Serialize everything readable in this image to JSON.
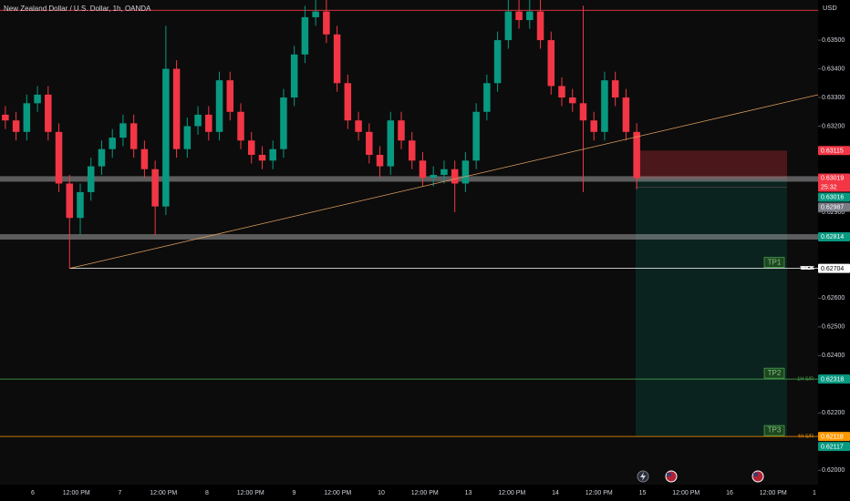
{
  "chart_data": {
    "type": "candlestick",
    "title": "New Zealand Dollar / U.S. Dollar, 1h, OANDA",
    "currency": "USD",
    "up_color": "#089981",
    "down_color": "#f23645",
    "open": [
      0.6324,
      0.6322,
      0.6318,
      0.6328,
      0.6331,
      0.6318,
      0.63,
      0.6288,
      0.6297,
      0.6306,
      0.6312,
      0.6316,
      0.6321,
      0.6312,
      0.6305,
      0.6292,
      0.634,
      0.6312,
      0.632,
      0.6324,
      0.6318,
      0.6336,
      0.6325,
      0.6315,
      0.631,
      0.6308,
      0.6312,
      0.633,
      0.6345,
      0.6358,
      0.636,
      0.6352,
      0.6335,
      0.6322,
      0.6318,
      0.631,
      0.6306,
      0.6322,
      0.6315,
      0.6308,
      0.6302,
      0.6303,
      0.6305,
      0.63,
      0.6308,
      0.6325,
      0.6335,
      0.635,
      0.636,
      0.6357,
      0.636,
      0.635,
      0.6334,
      0.633,
      0.6328,
      0.6322,
      0.6318,
      0.6336,
      0.633,
      0.6318
    ],
    "high": [
      0.6327,
      0.6325,
      0.6331,
      0.6334,
      0.6334,
      0.6321,
      0.6303,
      0.63,
      0.6309,
      0.6315,
      0.6319,
      0.6324,
      0.6324,
      0.6315,
      0.6308,
      0.6355,
      0.6343,
      0.6323,
      0.6327,
      0.6327,
      0.6339,
      0.6339,
      0.6328,
      0.6318,
      0.6313,
      0.6315,
      0.6333,
      0.6348,
      0.6362,
      0.6364,
      0.6364,
      0.6355,
      0.6338,
      0.6325,
      0.6321,
      0.6313,
      0.6325,
      0.6325,
      0.6318,
      0.6311,
      0.6306,
      0.6308,
      0.6308,
      0.6311,
      0.6328,
      0.6338,
      0.6353,
      0.6364,
      0.6364,
      0.6364,
      0.6364,
      0.6353,
      0.6337,
      0.6333,
      0.6362,
      0.6325,
      0.6339,
      0.6339,
      0.6333,
      0.6321
    ],
    "low": [
      0.6319,
      0.6315,
      0.6315,
      0.6325,
      0.6315,
      0.6297,
      0.62704,
      0.6282,
      0.6294,
      0.6303,
      0.6309,
      0.6313,
      0.6309,
      0.6302,
      0.6282,
      0.6289,
      0.6309,
      0.6309,
      0.6317,
      0.6315,
      0.6315,
      0.6322,
      0.6312,
      0.6307,
      0.6305,
      0.6305,
      0.6309,
      0.6327,
      0.6342,
      0.6355,
      0.6349,
      0.6332,
      0.6319,
      0.6315,
      0.6307,
      0.6302,
      0.6303,
      0.6312,
      0.6305,
      0.6299,
      0.6299,
      0.63,
      0.629,
      0.6297,
      0.6305,
      0.6322,
      0.6332,
      0.6347,
      0.6354,
      0.6354,
      0.6347,
      0.6331,
      0.6327,
      0.6325,
      0.6297,
      0.6315,
      0.6315,
      0.6327,
      0.6315,
      0.6298
    ],
    "close": [
      0.6322,
      0.6318,
      0.6328,
      0.6331,
      0.6318,
      0.63,
      0.6288,
      0.6297,
      0.6306,
      0.6312,
      0.6316,
      0.6321,
      0.6312,
      0.6305,
      0.6292,
      0.634,
      0.6312,
      0.632,
      0.6324,
      0.6318,
      0.6336,
      0.6325,
      0.6315,
      0.631,
      0.6308,
      0.6312,
      0.633,
      0.6345,
      0.6358,
      0.636,
      0.6352,
      0.6335,
      0.6322,
      0.6318,
      0.631,
      0.6306,
      0.6322,
      0.6315,
      0.6308,
      0.6302,
      0.6303,
      0.6305,
      0.63,
      0.6308,
      0.6325,
      0.6335,
      0.635,
      0.636,
      0.6357,
      0.636,
      0.635,
      0.6334,
      0.633,
      0.6328,
      0.6322,
      0.6318,
      0.6336,
      0.633,
      0.6318,
      0.63019
    ],
    "ylim": [
      0.6195,
      0.6364
    ],
    "yticks": [
      {
        "value": 0.635,
        "label": "0.63500"
      },
      {
        "value": 0.634,
        "label": "0.63400"
      },
      {
        "value": 0.633,
        "label": "0.63300"
      },
      {
        "value": 0.632,
        "label": "0.63200"
      },
      {
        "value": 0.629,
        "label": "0.62900"
      },
      {
        "value": 0.626,
        "label": "0.62600"
      },
      {
        "value": 0.625,
        "label": "0.62500"
      },
      {
        "value": 0.624,
        "label": "0.62400"
      },
      {
        "value": 0.622,
        "label": "0.62200"
      },
      {
        "value": 0.62,
        "label": "0.62000"
      }
    ],
    "grid": false,
    "time_labels": [
      "6",
      "12:00 PM",
      "7",
      "12:00 PM",
      "8",
      "12:00 PM",
      "9",
      "12:00 PM",
      "10",
      "12:00 PM",
      "13",
      "12:00 PM",
      "14",
      "12:00 PM",
      "15",
      "12:00 PM",
      "16",
      "12:00 PM",
      "1"
    ],
    "levels": [
      {
        "value": 0.63604,
        "color": "#f23645",
        "style": "line"
      },
      {
        "value": 0.63016,
        "label": "1H S/R",
        "color": "#9e9e9e",
        "style": "band"
      },
      {
        "value": 0.62814,
        "label": "1H S/R",
        "color": "#9e9e9e",
        "style": "band"
      },
      {
        "value": 0.62704,
        "label": "WICK",
        "color": "#ffffff",
        "style": "line"
      },
      {
        "value": 0.62318,
        "label": "1H S/R",
        "color": "#4caf50",
        "style": "line"
      },
      {
        "value": 0.62118,
        "label": "4H S/R",
        "color": "#ff9800",
        "style": "line"
      }
    ],
    "position": {
      "entry": 0.63016,
      "stop": 0.63115,
      "target": 0.62117,
      "targets": [
        {
          "label": "TP1",
          "value": 0.62704
        },
        {
          "label": "TP2",
          "value": 0.62318
        },
        {
          "label": "TP3",
          "value": 0.62118
        }
      ]
    },
    "price_tags": [
      {
        "value": 0.63115,
        "color": "#f23645"
      },
      {
        "value": 0.63019,
        "color": "#f23645",
        "countdown": "25:32"
      },
      {
        "value": 0.63016,
        "color": "#089981"
      },
      {
        "value": 0.62987,
        "color": "#787b86"
      },
      {
        "value": 0.62814,
        "color": "#089981"
      },
      {
        "value": 0.62704,
        "color": "#ffffff"
      },
      {
        "value": 0.62318,
        "color": "#089981"
      },
      {
        "value": 0.62118,
        "color": "#ff9800"
      },
      {
        "value": 0.62117,
        "color": "#089981"
      }
    ]
  }
}
